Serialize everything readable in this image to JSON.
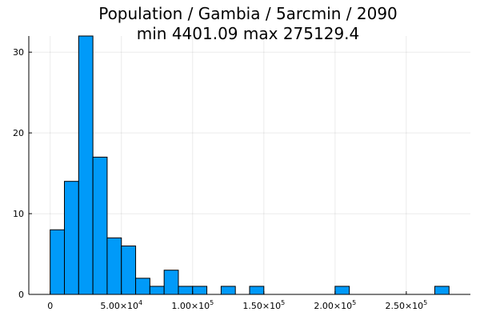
{
  "chart_data": {
    "type": "bar",
    "title_lines": [
      "Population / Gambia / 5arcmin / 2090",
      "min 4401.09  max 275129.4"
    ],
    "xlabel": "",
    "ylabel": "",
    "bin_width": 10000,
    "bins": [
      {
        "x0": 0,
        "x1": 10000,
        "count": 8
      },
      {
        "x0": 10000,
        "x1": 20000,
        "count": 14
      },
      {
        "x0": 20000,
        "x1": 30000,
        "count": 32
      },
      {
        "x0": 30000,
        "x1": 40000,
        "count": 17
      },
      {
        "x0": 40000,
        "x1": 50000,
        "count": 7
      },
      {
        "x0": 50000,
        "x1": 60000,
        "count": 6
      },
      {
        "x0": 60000,
        "x1": 70000,
        "count": 2
      },
      {
        "x0": 70000,
        "x1": 80000,
        "count": 1
      },
      {
        "x0": 80000,
        "x1": 90000,
        "count": 3
      },
      {
        "x0": 90000,
        "x1": 100000,
        "count": 1
      },
      {
        "x0": 100000,
        "x1": 110000,
        "count": 1
      },
      {
        "x0": 120000,
        "x1": 130000,
        "count": 1
      },
      {
        "x0": 140000,
        "x1": 150000,
        "count": 1
      },
      {
        "x0": 200000,
        "x1": 210000,
        "count": 1
      },
      {
        "x0": 270000,
        "x1": 280000,
        "count": 1
      }
    ],
    "xlim": [
      -15000,
      295000
    ],
    "ylim": [
      0,
      32
    ],
    "x_ticks": [
      {
        "value": 0,
        "label": "0"
      },
      {
        "value": 50000,
        "label": "5.00×10",
        "exp": "4"
      },
      {
        "value": 100000,
        "label": "1.00×10",
        "exp": "5"
      },
      {
        "value": 150000,
        "label": "1.50×10",
        "exp": "5"
      },
      {
        "value": 200000,
        "label": "2.00×10",
        "exp": "5"
      },
      {
        "value": 250000,
        "label": "2.50×10",
        "exp": "5"
      }
    ],
    "y_ticks": [
      {
        "value": 0,
        "label": "0"
      },
      {
        "value": 10,
        "label": "10"
      },
      {
        "value": 20,
        "label": "20"
      },
      {
        "value": 30,
        "label": "30"
      }
    ],
    "grid": true,
    "legend": "none",
    "bar_color": "#009AF9",
    "edge_color": "#000000"
  }
}
